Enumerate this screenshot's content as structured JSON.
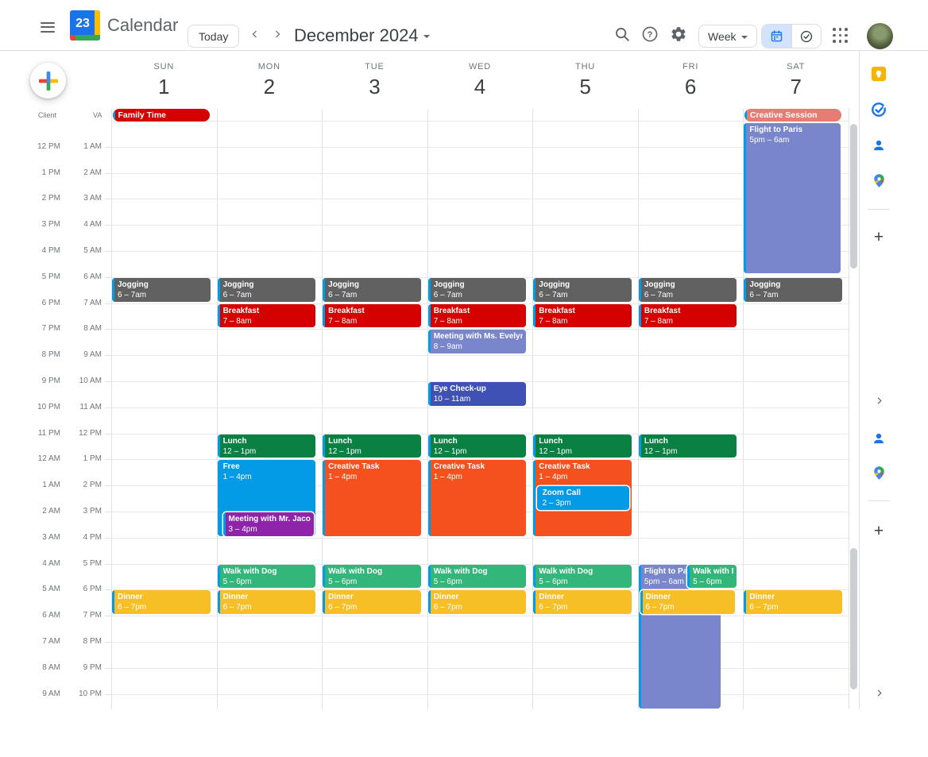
{
  "header": {
    "app_name": "Calendar",
    "logo_number": "23",
    "today_button": "Today",
    "current_range": "December 2024",
    "view_selector": "Week"
  },
  "timezones": {
    "left_label": "Client",
    "right_label": "VA",
    "left_times": [
      "12 PM",
      "1 PM",
      "2 PM",
      "3 PM",
      "4 PM",
      "5 PM",
      "6 PM",
      "7 PM",
      "8 PM",
      "9 PM",
      "10 PM",
      "11 PM",
      "12 AM",
      "1 AM",
      "2 AM",
      "3 AM",
      "4 AM",
      "5 AM",
      "6 AM",
      "7 AM",
      "8 AM",
      "9 AM"
    ],
    "right_times": [
      "1 AM",
      "2 AM",
      "3 AM",
      "4 AM",
      "5 AM",
      "6 AM",
      "7 AM",
      "8 AM",
      "9 AM",
      "10 AM",
      "11 AM",
      "12 PM",
      "1 PM",
      "2 PM",
      "3 PM",
      "4 PM",
      "5 PM",
      "6 PM",
      "7 PM",
      "8 PM",
      "9 PM",
      "10 PM"
    ]
  },
  "days": [
    {
      "name": "SUN",
      "number": "1"
    },
    {
      "name": "MON",
      "number": "2"
    },
    {
      "name": "TUE",
      "number": "3"
    },
    {
      "name": "WED",
      "number": "4"
    },
    {
      "name": "THU",
      "number": "5"
    },
    {
      "name": "FRI",
      "number": "6"
    },
    {
      "name": "SAT",
      "number": "7"
    }
  ],
  "palette": {
    "tomato": "#d50000",
    "flamingo": "#e67c73",
    "lavender": "#7986cb",
    "blueberry": "#3f51b5",
    "basil": "#0b8043",
    "sage": "#33b679",
    "peacock": "#039be5",
    "tangerine": "#f4511e",
    "grape": "#8e24aa",
    "banana": "#f6bf26",
    "graphite": "#616161",
    "event_strip": "#039be5"
  },
  "all_day_events": [
    {
      "day": 0,
      "title": "Family Time",
      "color": "tomato"
    },
    {
      "day": 6,
      "title": "Creative Session",
      "color": "flamingo"
    }
  ],
  "events": [
    {
      "day": 0,
      "title": "Jogging",
      "time": "6 – 7am",
      "color": "graphite",
      "start": 6,
      "end": 7
    },
    {
      "day": 1,
      "title": "Jogging",
      "time": "6 – 7am",
      "color": "graphite",
      "start": 6,
      "end": 7
    },
    {
      "day": 2,
      "title": "Jogging",
      "time": "6 – 7am",
      "color": "graphite",
      "start": 6,
      "end": 7
    },
    {
      "day": 3,
      "title": "Jogging",
      "time": "6 – 7am",
      "color": "graphite",
      "start": 6,
      "end": 7
    },
    {
      "day": 4,
      "title": "Jogging",
      "time": "6 – 7am",
      "color": "graphite",
      "start": 6,
      "end": 7
    },
    {
      "day": 5,
      "title": "Jogging",
      "time": "6 – 7am",
      "color": "graphite",
      "start": 6,
      "end": 7
    },
    {
      "day": 6,
      "title": "Jogging",
      "time": "6 – 7am",
      "color": "graphite",
      "start": 6,
      "end": 7
    },
    {
      "day": 1,
      "title": "Breakfast",
      "time": "7 – 8am",
      "color": "tomato",
      "start": 7,
      "end": 8
    },
    {
      "day": 2,
      "title": "Breakfast",
      "time": "7 – 8am",
      "color": "tomato",
      "start": 7,
      "end": 8
    },
    {
      "day": 3,
      "title": "Breakfast",
      "time": "7 – 8am",
      "color": "tomato",
      "start": 7,
      "end": 8
    },
    {
      "day": 4,
      "title": "Breakfast",
      "time": "7 – 8am",
      "color": "tomato",
      "start": 7,
      "end": 8
    },
    {
      "day": 5,
      "title": "Breakfast",
      "time": "7 – 8am",
      "color": "tomato",
      "start": 7,
      "end": 8
    },
    {
      "day": 3,
      "title": "Meeting with Ms. Evelyn",
      "time": "8 – 9am",
      "color": "lavender",
      "start": 8,
      "end": 9
    },
    {
      "day": 3,
      "title": "Eye Check-up",
      "time": "10 – 11am",
      "color": "blueberry",
      "start": 10,
      "end": 11
    },
    {
      "day": 1,
      "title": "Lunch",
      "time": "12 – 1pm",
      "color": "basil",
      "start": 12,
      "end": 13
    },
    {
      "day": 2,
      "title": "Lunch",
      "time": "12 – 1pm",
      "color": "basil",
      "start": 12,
      "end": 13
    },
    {
      "day": 3,
      "title": "Lunch",
      "time": "12 – 1pm",
      "color": "basil",
      "start": 12,
      "end": 13
    },
    {
      "day": 4,
      "title": "Lunch",
      "time": "12 – 1pm",
      "color": "basil",
      "start": 12,
      "end": 13
    },
    {
      "day": 5,
      "title": "Lunch",
      "time": "12 – 1pm",
      "color": "basil",
      "start": 12,
      "end": 13
    },
    {
      "day": 1,
      "title": "Free",
      "time": "1 – 4pm",
      "color": "peacock",
      "start": 13,
      "end": 16
    },
    {
      "day": 2,
      "title": "Creative Task",
      "time": "1 – 4pm",
      "color": "tangerine",
      "start": 13,
      "end": 16
    },
    {
      "day": 3,
      "title": "Creative Task",
      "time": "1 – 4pm",
      "color": "tangerine",
      "start": 13,
      "end": 16
    },
    {
      "day": 4,
      "title": "Creative Task",
      "time": "1 – 4pm",
      "color": "tangerine",
      "start": 13,
      "end": 16
    },
    {
      "day": 4,
      "title": "Zoom Call",
      "time": "2 – 3pm",
      "color": "peacock",
      "start": 14,
      "end": 15,
      "x": 0.04,
      "w": 0.88,
      "inset": true,
      "z": 3
    },
    {
      "day": 1,
      "title": "Meeting with Mr. Jacobs",
      "time": "3 – 4pm",
      "color": "grape",
      "start": 15,
      "end": 16,
      "x": 0.06,
      "w": 0.86,
      "inset": true,
      "z": 3
    },
    {
      "day": 1,
      "title": "Walk with Dog",
      "time": "5 – 6pm",
      "color": "sage",
      "start": 17,
      "end": 18
    },
    {
      "day": 2,
      "title": "Walk with Dog",
      "time": "5 – 6pm",
      "color": "sage",
      "start": 17,
      "end": 18
    },
    {
      "day": 3,
      "title": "Walk with Dog",
      "time": "5 – 6pm",
      "color": "sage",
      "start": 17,
      "end": 18
    },
    {
      "day": 4,
      "title": "Walk with Dog",
      "time": "5 – 6pm",
      "color": "sage",
      "start": 17,
      "end": 18
    },
    {
      "day": 5,
      "title": "Walk with Dog",
      "time": "5 – 6pm",
      "color": "sage",
      "start": 17,
      "end": 18,
      "x": 0.47,
      "w": 0.47,
      "inset": true,
      "z": 3
    },
    {
      "day": 5,
      "title": "Flight to Paris",
      "time": "5pm – 6am",
      "color": "lavender",
      "start": 17,
      "end": 22.62,
      "w": 0.78,
      "z": 1
    },
    {
      "day": 6,
      "title": "Flight to Paris",
      "time": "5pm – 6am",
      "color": "lavender",
      "start": 0.07,
      "end": 5.92,
      "w": 0.92
    },
    {
      "day": 0,
      "title": "Dinner",
      "time": "6 – 7pm",
      "color": "banana",
      "start": 18,
      "end": 19
    },
    {
      "day": 1,
      "title": "Dinner",
      "time": "6 – 7pm",
      "color": "banana",
      "start": 18,
      "end": 19
    },
    {
      "day": 2,
      "title": "Dinner",
      "time": "6 – 7pm",
      "color": "banana",
      "start": 18,
      "end": 19
    },
    {
      "day": 3,
      "title": "Dinner",
      "time": "6 – 7pm",
      "color": "banana",
      "start": 18,
      "end": 19
    },
    {
      "day": 4,
      "title": "Dinner",
      "time": "6 – 7pm",
      "color": "banana",
      "start": 18,
      "end": 19
    },
    {
      "day": 5,
      "title": "Dinner",
      "time": "6 – 7pm",
      "color": "banana",
      "start": 18,
      "end": 19,
      "x": 0.02,
      "w": 0.9,
      "inset": true,
      "z": 4
    },
    {
      "day": 6,
      "title": "Dinner",
      "time": "6 – 7pm",
      "color": "banana",
      "start": 18,
      "end": 19
    }
  ]
}
